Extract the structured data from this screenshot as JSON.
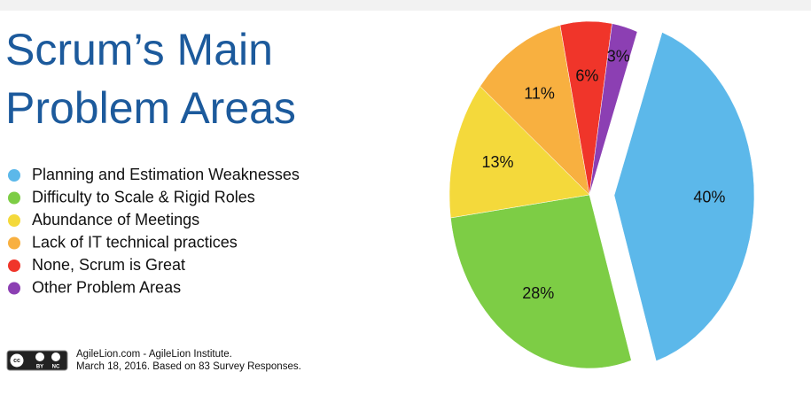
{
  "chart_data": {
    "type": "pie",
    "title_lines": [
      "Scrum’s Main",
      "Problem Areas"
    ],
    "categories": [
      "Planning and Estimation Weaknesses",
      "Difficulty to Scale & Rigid Roles",
      "Abundance of Meetings",
      "Lack of IT technical practices",
      "None, Scrum is Great",
      "Other Problem Areas"
    ],
    "values": [
      40,
      28,
      13,
      11,
      6,
      3
    ],
    "value_labels": [
      "40%",
      "28%",
      "13%",
      "11%",
      "6%",
      "3%"
    ],
    "colors": [
      "#5cb8ea",
      "#7dcd45",
      "#f4d93b",
      "#f8b040",
      "#f0352a",
      "#8c3fb3"
    ],
    "exploded": [
      0
    ],
    "legend": "left",
    "footer": [
      "AgileLion.com - AgileLion Institute.",
      "March 18, 2016. Based on 83 Survey Responses."
    ],
    "badge": [
      "cc",
      "BY",
      "NC"
    ]
  }
}
